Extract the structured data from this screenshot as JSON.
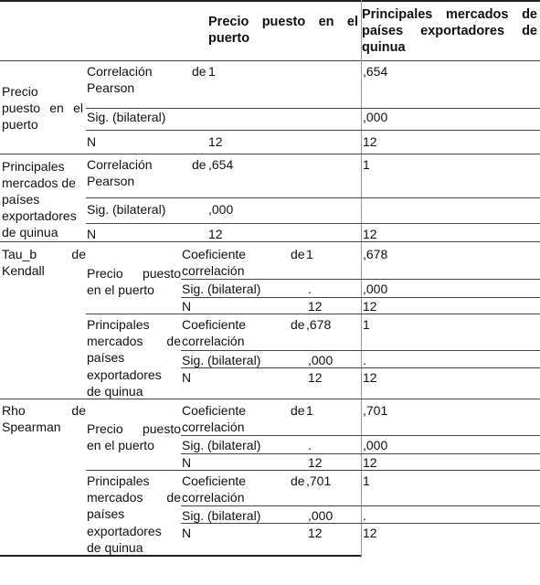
{
  "header": {
    "col1": [
      "Precio puesto en el",
      "puerto"
    ],
    "col2": [
      "Principales mercados de",
      "países exportadores de",
      "quinua"
    ]
  },
  "pearson": {
    "precio": {
      "label": [
        "Precio",
        "puesto en el",
        "puerto"
      ],
      "corr_label": [
        "Correlación",
        "Pearson"
      ],
      "corr_de": "de",
      "corr_v1": "1",
      "corr_v2": ",654",
      "sig_label": "Sig. (bilateral)",
      "sig_v2": ",000",
      "n_label": "N",
      "n_v1": "12",
      "n_v2": "12"
    },
    "principales": {
      "label": [
        "Principales",
        "mercados de",
        "países",
        "exportadores",
        "de quinua"
      ],
      "corr_label": [
        "Correlación",
        "Pearson"
      ],
      "corr_de": "de",
      "corr_v1": ",654",
      "corr_v2": "1",
      "sig_label": "Sig. (bilateral)",
      "sig_v1": ",000",
      "n_label": "N",
      "n_v1": "12",
      "n_v2": "12"
    }
  },
  "kendall": {
    "label": [
      "Tau_b de",
      "Kendall"
    ],
    "precio": {
      "label": [
        "Precio puesto",
        "en el puerto"
      ],
      "coef_label": [
        "Coeficiente",
        "correlación"
      ],
      "coef_de": "de",
      "coef_v1": "1",
      "coef_v2": ",678",
      "sig_label": "Sig. (bilateral)",
      "sig_v1": ".",
      "sig_v2": ",000",
      "n_label": "N",
      "n_v1": "12",
      "n_v2": "12"
    },
    "principales": {
      "label": [
        "Principales",
        "mercados de",
        "países",
        "exportadores",
        "de quinua"
      ],
      "coef_label": [
        "Coeficiente",
        "correlación"
      ],
      "coef_de": "de",
      "coef_v1": ",678",
      "coef_v2": "1",
      "sig_label": "Sig. (bilateral)",
      "sig_v1": ",000",
      "sig_v2": ".",
      "n_label": "N",
      "n_v1": "12",
      "n_v2": "12"
    }
  },
  "spearman": {
    "label": [
      "Rho de",
      "Spearman"
    ],
    "precio": {
      "label": [
        "Precio puesto",
        "en el puerto"
      ],
      "coef_label": [
        "Coeficiente",
        "correlación"
      ],
      "coef_de": "de",
      "coef_v1": "1",
      "coef_v2": ",701",
      "sig_label": "Sig. (bilateral)",
      "sig_v1": ".",
      "sig_v2": ",000",
      "n_label": "N",
      "n_v1": "12",
      "n_v2": "12"
    },
    "principales": {
      "label": [
        "Principales",
        "mercados de",
        "países",
        "exportadores",
        "de quinua"
      ],
      "coef_label": [
        "Coeficiente",
        "correlación"
      ],
      "coef_de": "de",
      "coef_v1": ",701",
      "coef_v2": "1",
      "sig_label": "Sig. (bilateral)",
      "sig_v1": ",000",
      "sig_v2": ".",
      "n_label": "N",
      "n_v1": "12",
      "n_v2": "12"
    }
  }
}
